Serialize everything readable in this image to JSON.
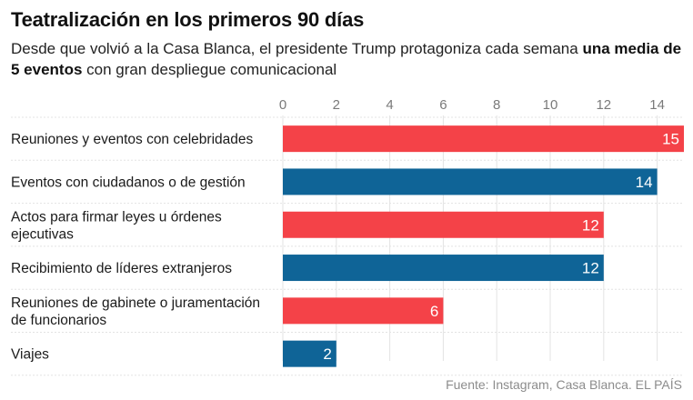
{
  "title": "Teatralización en los primeros 90 días",
  "subtitle": {
    "part1": "Desde que volvió a la Casa Blanca, el presidente Trump protagoniza cada semana ",
    "bold": "una media de 5 eventos",
    "part2": " con gran despliegue comunicacional"
  },
  "source": "Fuente: Instagram, Casa Blanca. EL PAÍS",
  "colors": {
    "red": "#f44248",
    "blue": "#0f6497",
    "grid": "#e3e3e3",
    "label": "#1a1a1a",
    "tick": "#7a7a7a"
  },
  "chart_data": {
    "type": "bar",
    "orientation": "horizontal",
    "title": "Teatralización en los primeros 90 días",
    "xlabel": "",
    "ylabel": "",
    "xlim": [
      0,
      15
    ],
    "ticks": [
      0,
      2,
      4,
      6,
      8,
      10,
      12,
      14
    ],
    "grid": true,
    "categories": [
      [
        "Reuniones y eventos con celebridades"
      ],
      [
        "Eventos con ciudadanos o de gestión"
      ],
      [
        "Actos para firmar leyes u órdenes",
        "ejecutivas"
      ],
      [
        "Recibimiento de líderes extranjeros"
      ],
      [
        "Reuniones de gabinete o juramentación",
        "de funcionarios"
      ],
      [
        "Viajes"
      ]
    ],
    "values": [
      15,
      14,
      12,
      12,
      6,
      2
    ],
    "bar_colors": [
      "red",
      "blue",
      "red",
      "blue",
      "red",
      "blue"
    ]
  }
}
